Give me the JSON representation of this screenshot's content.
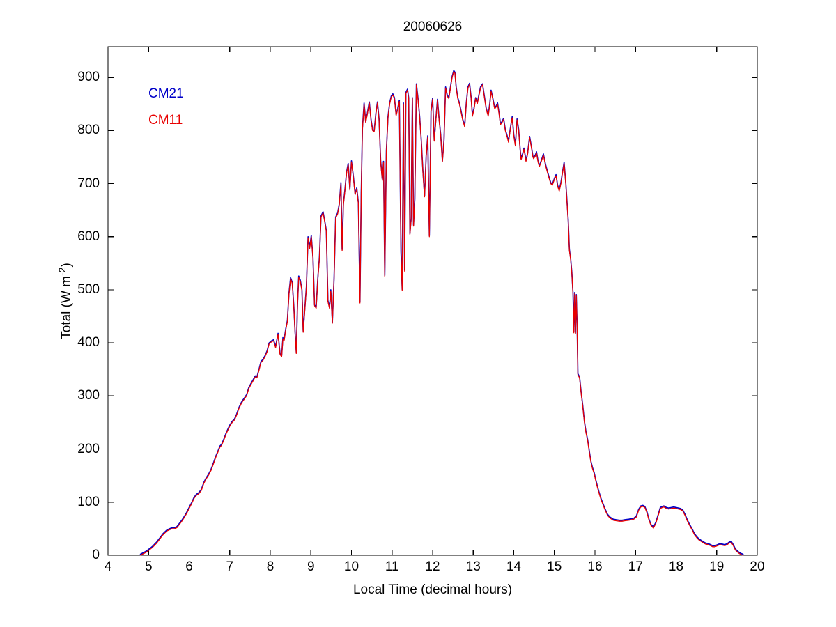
{
  "figure": {
    "background": "#ffffff",
    "axis_color": "#000000"
  },
  "labels": {
    "ylabel_prefix": "Total (W m",
    "ylabel_sup": "-2",
    "ylabel_suffix": ")"
  },
  "chart_data": {
    "type": "line",
    "title": "20060626",
    "xlabel": "Local Time (decimal hours)",
    "ylabel": "Total (W m^-2)",
    "xlim": [
      4,
      20
    ],
    "ylim": [
      0,
      958
    ],
    "x_ticks": [
      4,
      5,
      6,
      7,
      8,
      9,
      10,
      11,
      12,
      13,
      14,
      15,
      16,
      17,
      18,
      19,
      20
    ],
    "y_ticks": [
      0,
      100,
      200,
      300,
      400,
      500,
      600,
      700,
      800,
      900
    ],
    "grid": false,
    "legend_position": "inside-upper-left",
    "series": [
      {
        "name": "CM21",
        "color": "#0000C8"
      },
      {
        "name": "CM11",
        "color": "#E80000"
      }
    ],
    "samples_unit": "W m^-2 vs decimal hours (both series coincide at this resolution)",
    "samples": [
      [
        4.8,
        0
      ],
      [
        4.85,
        2
      ],
      [
        4.9,
        4
      ],
      [
        4.95,
        6
      ],
      [
        5.0,
        9
      ],
      [
        5.05,
        12
      ],
      [
        5.1,
        15
      ],
      [
        5.15,
        19
      ],
      [
        5.2,
        23
      ],
      [
        5.25,
        28
      ],
      [
        5.3,
        33
      ],
      [
        5.35,
        38
      ],
      [
        5.4,
        42
      ],
      [
        5.46,
        46
      ],
      [
        5.52,
        48
      ],
      [
        5.58,
        50
      ],
      [
        5.64,
        50
      ],
      [
        5.7,
        52
      ],
      [
        5.76,
        58
      ],
      [
        5.82,
        64
      ],
      [
        5.88,
        71
      ],
      [
        5.94,
        79
      ],
      [
        6.0,
        88
      ],
      [
        6.06,
        97
      ],
      [
        6.12,
        107
      ],
      [
        6.18,
        113
      ],
      [
        6.24,
        116
      ],
      [
        6.3,
        122
      ],
      [
        6.36,
        135
      ],
      [
        6.42,
        144
      ],
      [
        6.48,
        151
      ],
      [
        6.54,
        160
      ],
      [
        6.6,
        172
      ],
      [
        6.66,
        185
      ],
      [
        6.72,
        196
      ],
      [
        6.76,
        204
      ],
      [
        6.8,
        207
      ],
      [
        6.86,
        218
      ],
      [
        6.92,
        230
      ],
      [
        7.0,
        243
      ],
      [
        7.06,
        250
      ],
      [
        7.12,
        255
      ],
      [
        7.17,
        264
      ],
      [
        7.22,
        275
      ],
      [
        7.28,
        285
      ],
      [
        7.32,
        290
      ],
      [
        7.36,
        294
      ],
      [
        7.42,
        301
      ],
      [
        7.47,
        314
      ],
      [
        7.52,
        321
      ],
      [
        7.58,
        329
      ],
      [
        7.63,
        336
      ],
      [
        7.67,
        334
      ],
      [
        7.72,
        348
      ],
      [
        7.77,
        363
      ],
      [
        7.82,
        367
      ],
      [
        7.87,
        374
      ],
      [
        7.92,
        383
      ],
      [
        7.97,
        398
      ],
      [
        8.03,
        402
      ],
      [
        8.08,
        404
      ],
      [
        8.13,
        391
      ],
      [
        8.19,
        416
      ],
      [
        8.24,
        378
      ],
      [
        8.28,
        374
      ],
      [
        8.31,
        408
      ],
      [
        8.34,
        404
      ],
      [
        8.38,
        424
      ],
      [
        8.42,
        440
      ],
      [
        8.46,
        492
      ],
      [
        8.5,
        521
      ],
      [
        8.54,
        512
      ],
      [
        8.58,
        466
      ],
      [
        8.61,
        420
      ],
      [
        8.64,
        380
      ],
      [
        8.67,
        470
      ],
      [
        8.7,
        524
      ],
      [
        8.74,
        516
      ],
      [
        8.78,
        498
      ],
      [
        8.81,
        420
      ],
      [
        8.85,
        462
      ],
      [
        8.89,
        504
      ],
      [
        8.93,
        598
      ],
      [
        8.97,
        578
      ],
      [
        9.01,
        600
      ],
      [
        9.05,
        560
      ],
      [
        9.09,
        470
      ],
      [
        9.13,
        465
      ],
      [
        9.17,
        520
      ],
      [
        9.21,
        560
      ],
      [
        9.25,
        637
      ],
      [
        9.3,
        645
      ],
      [
        9.34,
        628
      ],
      [
        9.38,
        610
      ],
      [
        9.42,
        478
      ],
      [
        9.46,
        465
      ],
      [
        9.49,
        498
      ],
      [
        9.53,
        437
      ],
      [
        9.57,
        520
      ],
      [
        9.61,
        635
      ],
      [
        9.66,
        643
      ],
      [
        9.7,
        660
      ],
      [
        9.74,
        700
      ],
      [
        9.77,
        574
      ],
      [
        9.8,
        660
      ],
      [
        9.84,
        688
      ],
      [
        9.88,
        720
      ],
      [
        9.92,
        736
      ],
      [
        9.96,
        688
      ],
      [
        10.0,
        741
      ],
      [
        10.05,
        710
      ],
      [
        10.09,
        679
      ],
      [
        10.13,
        690
      ],
      [
        10.17,
        662
      ],
      [
        10.21,
        475
      ],
      [
        10.24,
        680
      ],
      [
        10.27,
        802
      ],
      [
        10.31,
        850
      ],
      [
        10.35,
        815
      ],
      [
        10.39,
        830
      ],
      [
        10.44,
        852
      ],
      [
        10.48,
        820
      ],
      [
        10.52,
        800
      ],
      [
        10.56,
        798
      ],
      [
        10.6,
        830
      ],
      [
        10.64,
        852
      ],
      [
        10.68,
        820
      ],
      [
        10.72,
        741
      ],
      [
        10.76,
        706
      ],
      [
        10.79,
        740
      ],
      [
        10.82,
        525
      ],
      [
        10.86,
        760
      ],
      [
        10.9,
        824
      ],
      [
        10.94,
        850
      ],
      [
        10.98,
        863
      ],
      [
        11.02,
        867
      ],
      [
        11.06,
        860
      ],
      [
        11.1,
        828
      ],
      [
        11.14,
        840
      ],
      [
        11.18,
        855
      ],
      [
        11.22,
        570
      ],
      [
        11.25,
        499
      ],
      [
        11.28,
        850
      ],
      [
        11.31,
        535
      ],
      [
        11.34,
        870
      ],
      [
        11.38,
        876
      ],
      [
        11.41,
        860
      ],
      [
        11.44,
        604
      ],
      [
        11.47,
        631
      ],
      [
        11.5,
        860
      ],
      [
        11.53,
        620
      ],
      [
        11.56,
        669
      ],
      [
        11.6,
        886
      ],
      [
        11.64,
        859
      ],
      [
        11.68,
        824
      ],
      [
        11.72,
        780
      ],
      [
        11.76,
        723
      ],
      [
        11.8,
        675
      ],
      [
        11.84,
        750
      ],
      [
        11.88,
        788
      ],
      [
        11.92,
        600
      ],
      [
        11.96,
        835
      ],
      [
        12.0,
        859
      ],
      [
        12.04,
        780
      ],
      [
        12.08,
        820
      ],
      [
        12.12,
        857
      ],
      [
        12.16,
        820
      ],
      [
        12.2,
        790
      ],
      [
        12.24,
        741
      ],
      [
        12.28,
        780
      ],
      [
        12.32,
        880
      ],
      [
        12.36,
        865
      ],
      [
        12.4,
        860
      ],
      [
        12.44,
        880
      ],
      [
        12.48,
        900
      ],
      [
        12.52,
        911
      ],
      [
        12.55,
        908
      ],
      [
        12.58,
        880
      ],
      [
        12.62,
        860
      ],
      [
        12.66,
        850
      ],
      [
        12.7,
        835
      ],
      [
        12.74,
        820
      ],
      [
        12.79,
        807
      ],
      [
        12.83,
        850
      ],
      [
        12.87,
        880
      ],
      [
        12.91,
        887
      ],
      [
        12.95,
        860
      ],
      [
        12.98,
        827
      ],
      [
        13.02,
        840
      ],
      [
        13.06,
        860
      ],
      [
        13.1,
        850
      ],
      [
        13.14,
        865
      ],
      [
        13.18,
        880
      ],
      [
        13.23,
        886
      ],
      [
        13.28,
        860
      ],
      [
        13.32,
        840
      ],
      [
        13.37,
        827
      ],
      [
        13.41,
        850
      ],
      [
        13.44,
        874
      ],
      [
        13.48,
        860
      ],
      [
        13.53,
        841
      ],
      [
        13.57,
        845
      ],
      [
        13.6,
        850
      ],
      [
        13.64,
        830
      ],
      [
        13.67,
        811
      ],
      [
        13.71,
        815
      ],
      [
        13.75,
        821
      ],
      [
        13.79,
        800
      ],
      [
        13.84,
        787
      ],
      [
        13.87,
        778
      ],
      [
        13.91,
        800
      ],
      [
        13.96,
        824
      ],
      [
        14.0,
        790
      ],
      [
        14.04,
        771
      ],
      [
        14.08,
        820
      ],
      [
        14.12,
        800
      ],
      [
        14.16,
        760
      ],
      [
        14.18,
        745
      ],
      [
        14.22,
        755
      ],
      [
        14.25,
        765
      ],
      [
        14.3,
        742
      ],
      [
        14.34,
        755
      ],
      [
        14.39,
        787
      ],
      [
        14.43,
        770
      ],
      [
        14.47,
        750
      ],
      [
        14.49,
        747
      ],
      [
        14.53,
        752
      ],
      [
        14.56,
        758
      ],
      [
        14.6,
        740
      ],
      [
        14.63,
        732
      ],
      [
        14.68,
        742
      ],
      [
        14.73,
        754
      ],
      [
        14.78,
        735
      ],
      [
        14.83,
        721
      ],
      [
        14.87,
        710
      ],
      [
        14.91,
        700
      ],
      [
        14.95,
        697
      ],
      [
        15.0,
        708
      ],
      [
        15.04,
        715
      ],
      [
        15.08,
        695
      ],
      [
        15.12,
        686
      ],
      [
        15.16,
        700
      ],
      [
        15.2,
        720
      ],
      [
        15.24,
        738
      ],
      [
        15.28,
        700
      ],
      [
        15.31,
        666
      ],
      [
        15.34,
        629
      ],
      [
        15.37,
        574
      ],
      [
        15.4,
        557
      ],
      [
        15.43,
        531
      ],
      [
        15.46,
        491
      ],
      [
        15.48,
        419
      ],
      [
        15.5,
        493
      ],
      [
        15.52,
        417
      ],
      [
        15.54,
        489
      ],
      [
        15.56,
        430
      ],
      [
        15.58,
        340
      ],
      [
        15.62,
        334
      ],
      [
        15.66,
        305
      ],
      [
        15.7,
        280
      ],
      [
        15.74,
        250
      ],
      [
        15.78,
        230
      ],
      [
        15.82,
        216
      ],
      [
        15.86,
        195
      ],
      [
        15.9,
        175
      ],
      [
        15.94,
        163
      ],
      [
        15.98,
        154
      ],
      [
        16.02,
        140
      ],
      [
        16.06,
        128
      ],
      [
        16.1,
        117
      ],
      [
        16.15,
        105
      ],
      [
        16.2,
        95
      ],
      [
        16.25,
        85
      ],
      [
        16.31,
        75
      ],
      [
        16.37,
        70
      ],
      [
        16.45,
        66
      ],
      [
        16.52,
        65
      ],
      [
        16.6,
        64
      ],
      [
        16.67,
        64
      ],
      [
        16.74,
        65
      ],
      [
        16.84,
        66
      ],
      [
        16.9,
        67
      ],
      [
        16.96,
        68
      ],
      [
        17.02,
        72
      ],
      [
        17.08,
        85
      ],
      [
        17.13,
        91
      ],
      [
        17.18,
        92
      ],
      [
        17.23,
        90
      ],
      [
        17.28,
        80
      ],
      [
        17.33,
        66
      ],
      [
        17.38,
        56
      ],
      [
        17.44,
        51
      ],
      [
        17.5,
        60
      ],
      [
        17.56,
        75
      ],
      [
        17.61,
        88
      ],
      [
        17.66,
        90
      ],
      [
        17.7,
        91
      ],
      [
        17.76,
        88
      ],
      [
        17.82,
        87
      ],
      [
        17.88,
        88
      ],
      [
        17.94,
        89
      ],
      [
        18.0,
        88
      ],
      [
        18.06,
        87
      ],
      [
        18.11,
        86
      ],
      [
        18.16,
        84
      ],
      [
        18.22,
        75
      ],
      [
        18.28,
        64
      ],
      [
        18.34,
        55
      ],
      [
        18.4,
        47
      ],
      [
        18.45,
        39
      ],
      [
        18.51,
        33
      ],
      [
        18.56,
        29
      ],
      [
        18.62,
        26
      ],
      [
        18.68,
        23
      ],
      [
        18.73,
        21
      ],
      [
        18.79,
        20
      ],
      [
        18.85,
        18
      ],
      [
        18.9,
        16
      ],
      [
        18.96,
        16
      ],
      [
        19.02,
        18
      ],
      [
        19.08,
        20
      ],
      [
        19.14,
        19
      ],
      [
        19.2,
        18
      ],
      [
        19.26,
        20
      ],
      [
        19.31,
        23
      ],
      [
        19.36,
        24
      ],
      [
        19.41,
        18
      ],
      [
        19.46,
        10
      ],
      [
        19.51,
        6
      ],
      [
        19.56,
        3
      ],
      [
        19.61,
        1
      ],
      [
        19.65,
        0
      ]
    ]
  }
}
